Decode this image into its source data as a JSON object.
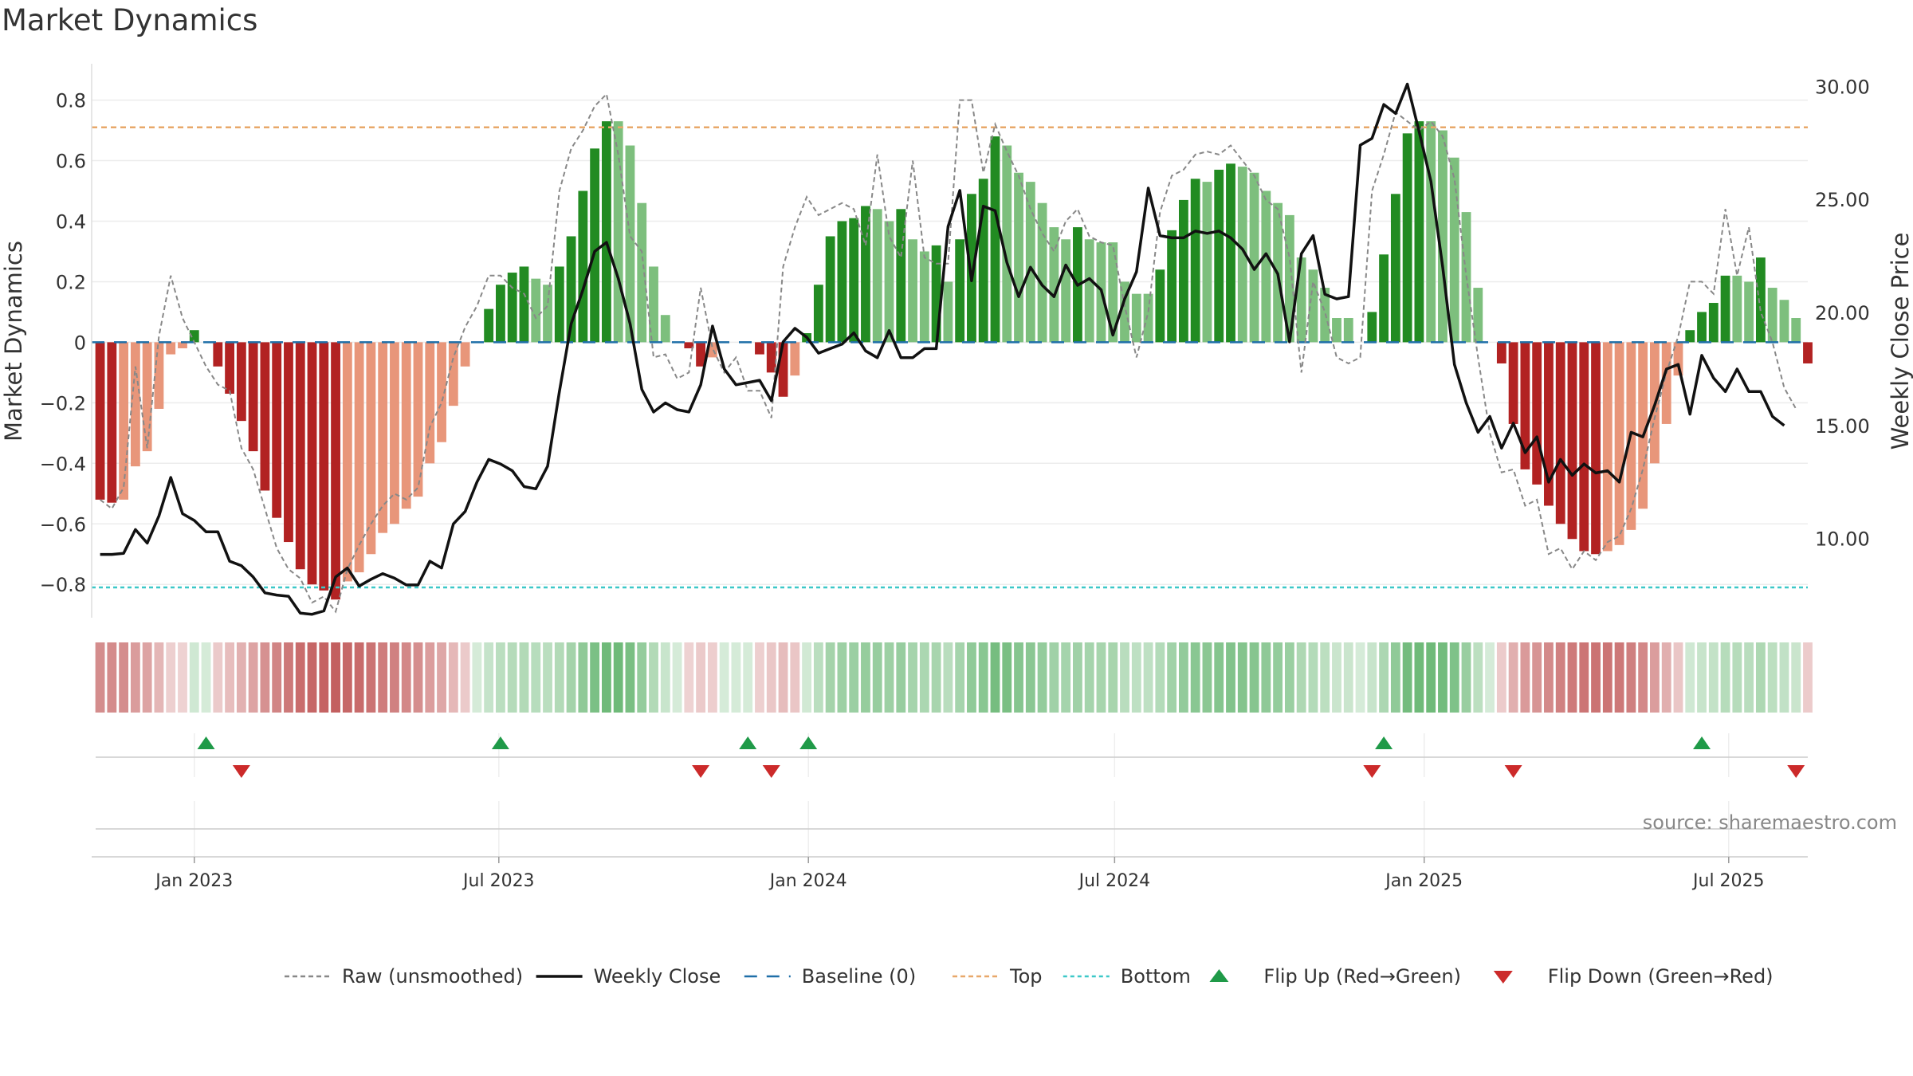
{
  "title": "Market Dynamics",
  "source": "source: sharemaestro.com",
  "colors": {
    "strong_green": "#228b22",
    "light_green": "#7dbf7d",
    "strong_red": "#b22222",
    "light_red": "#e8967a",
    "price": "#111111",
    "raw": "#888888",
    "baseline": "#1f6fa8",
    "top": "#e8a86a",
    "bottom": "#3cc8c8",
    "flip_up": "#1f9a48",
    "flip_down": "#cc2a2a"
  },
  "chart_data": {
    "type": "bar",
    "title": "Market Dynamics",
    "ylabel": "Market Dynamics",
    "y2label": "Weekly Close Price",
    "ylim": [
      -0.91,
      0.92
    ],
    "y2lim": [
      6.5,
      31.0
    ],
    "yticks": [
      -0.8,
      -0.6,
      -0.4,
      -0.2,
      0,
      0.2,
      0.4,
      0.6,
      0.8
    ],
    "ytick_labels": [
      "−0.8",
      "−0.6",
      "−0.4",
      "−0.2",
      "0",
      "0.2",
      "0.4",
      "0.6",
      "0.8"
    ],
    "y2ticks": [
      10,
      15,
      20,
      25,
      30
    ],
    "y2tick_labels": [
      "10.00",
      "15.00",
      "20.00",
      "25.00",
      "30.00"
    ],
    "x_start": "2022-11-01",
    "x_end": "2025-08-17",
    "x_ticks": [
      {
        "date": "2023-01-01",
        "label": "Jan 2023"
      },
      {
        "date": "2023-07-01",
        "label": "Jul 2023"
      },
      {
        "date": "2024-01-01",
        "label": "Jan 2024"
      },
      {
        "date": "2024-07-01",
        "label": "Jul 2024"
      },
      {
        "date": "2025-01-01",
        "label": "Jan 2025"
      },
      {
        "date": "2025-07-01",
        "label": "Jul 2025"
      }
    ],
    "first_week": "2022-11-06",
    "week_days": 7,
    "top_level": 0.71,
    "bottom_level": -0.81,
    "baseline": 0,
    "grid": true,
    "legend_position": "bottom",
    "legend": [
      {
        "key": "raw",
        "label": "Raw (unsmoothed)"
      },
      {
        "key": "price",
        "label": "Weekly Close"
      },
      {
        "key": "baseline",
        "label": "Baseline (0)"
      },
      {
        "key": "top",
        "label": "Top"
      },
      {
        "key": "bottom",
        "label": "Bottom"
      },
      {
        "key": "flip_up",
        "label": "Flip Up (Red→Green)"
      },
      {
        "key": "flip_down",
        "label": "Flip Down (Green→Red)"
      }
    ],
    "dynamics": [
      -0.52,
      -0.53,
      -0.52,
      -0.41,
      -0.36,
      -0.22,
      -0.04,
      -0.02,
      0.04,
      0.0,
      -0.08,
      -0.17,
      -0.26,
      -0.36,
      -0.49,
      -0.58,
      -0.66,
      -0.75,
      -0.8,
      -0.82,
      -0.85,
      -0.79,
      -0.76,
      -0.7,
      -0.63,
      -0.6,
      -0.55,
      -0.51,
      -0.4,
      -0.33,
      -0.21,
      -0.08,
      0.0,
      0.11,
      0.19,
      0.23,
      0.25,
      0.21,
      0.19,
      0.25,
      0.35,
      0.5,
      0.64,
      0.73,
      0.73,
      0.65,
      0.46,
      0.25,
      0.09,
      0.0,
      -0.02,
      -0.08,
      -0.05,
      0.0,
      0.0,
      0.0,
      -0.04,
      -0.1,
      -0.18,
      -0.11,
      0.03,
      0.19,
      0.35,
      0.4,
      0.41,
      0.45,
      0.44,
      0.4,
      0.44,
      0.34,
      0.3,
      0.32,
      0.2,
      0.34,
      0.49,
      0.54,
      0.68,
      0.65,
      0.56,
      0.53,
      0.46,
      0.38,
      0.34,
      0.38,
      0.34,
      0.33,
      0.33,
      0.2,
      0.16,
      0.16,
      0.24,
      0.37,
      0.47,
      0.54,
      0.53,
      0.57,
      0.59,
      0.58,
      0.56,
      0.5,
      0.46,
      0.42,
      0.28,
      0.24,
      0.18,
      0.08,
      0.08,
      0.0,
      0.1,
      0.29,
      0.49,
      0.69,
      0.73,
      0.73,
      0.7,
      0.61,
      0.43,
      0.18,
      0.0,
      -0.07,
      -0.27,
      -0.42,
      -0.47,
      -0.54,
      -0.6,
      -0.65,
      -0.69,
      -0.7,
      -0.69,
      -0.67,
      -0.62,
      -0.55,
      -0.4,
      -0.27,
      -0.11,
      0.04,
      0.1,
      0.13,
      0.22,
      0.22,
      0.2,
      0.28,
      0.18,
      0.14,
      0.08,
      -0.07
    ],
    "raw": [
      -0.52,
      -0.55,
      -0.48,
      -0.08,
      -0.35,
      0.02,
      0.22,
      0.08,
      0.0,
      -0.08,
      -0.14,
      -0.16,
      -0.35,
      -0.42,
      -0.55,
      -0.68,
      -0.75,
      -0.78,
      -0.86,
      -0.84,
      -0.89,
      -0.75,
      -0.67,
      -0.6,
      -0.54,
      -0.5,
      -0.52,
      -0.48,
      -0.28,
      -0.2,
      -0.05,
      0.05,
      0.12,
      0.22,
      0.22,
      0.18,
      0.16,
      0.08,
      0.12,
      0.5,
      0.64,
      0.7,
      0.78,
      0.82,
      0.62,
      0.35,
      0.3,
      -0.05,
      -0.04,
      -0.12,
      -0.1,
      0.18,
      -0.02,
      -0.1,
      -0.05,
      -0.16,
      -0.16,
      -0.25,
      0.25,
      0.38,
      0.48,
      0.42,
      0.44,
      0.46,
      0.44,
      0.32,
      0.62,
      0.35,
      0.28,
      0.6,
      0.28,
      0.26,
      0.26,
      0.8,
      0.8,
      0.56,
      0.72,
      0.63,
      0.55,
      0.44,
      0.36,
      0.3,
      0.4,
      0.44,
      0.35,
      0.33,
      0.32,
      0.12,
      -0.05,
      0.1,
      0.43,
      0.55,
      0.57,
      0.62,
      0.63,
      0.62,
      0.65,
      0.6,
      0.55,
      0.47,
      0.44,
      0.28,
      -0.1,
      0.2,
      0.1,
      -0.05,
      -0.07,
      -0.05,
      0.5,
      0.62,
      0.76,
      0.73,
      0.7,
      0.73,
      0.68,
      0.54,
      0.22,
      -0.05,
      -0.3,
      -0.43,
      -0.42,
      -0.54,
      -0.52,
      -0.7,
      -0.68,
      -0.75,
      -0.69,
      -0.72,
      -0.66,
      -0.64,
      -0.55,
      -0.42,
      -0.25,
      -0.1,
      0.02,
      0.2,
      0.2,
      0.16,
      0.44,
      0.22,
      0.38,
      0.1,
      0.0,
      -0.15,
      -0.22
    ],
    "price": [
      9.3,
      9.3,
      9.35,
      10.4,
      9.8,
      11.0,
      12.7,
      11.1,
      10.8,
      10.3,
      10.3,
      9.0,
      8.8,
      8.3,
      7.6,
      7.5,
      7.45,
      6.7,
      6.65,
      6.8,
      8.3,
      8.7,
      7.9,
      8.2,
      8.45,
      8.25,
      7.95,
      7.95,
      9.0,
      8.7,
      10.65,
      11.2,
      12.5,
      13.5,
      13.3,
      13.0,
      12.3,
      12.2,
      13.2,
      16.5,
      19.5,
      21.0,
      22.7,
      23.1,
      21.5,
      19.5,
      16.6,
      15.6,
      16.0,
      15.7,
      15.6,
      16.8,
      19.4,
      17.5,
      16.8,
      16.9,
      17.0,
      16.1,
      18.7,
      19.3,
      18.9,
      18.2,
      18.4,
      18.6,
      19.1,
      18.3,
      18.0,
      19.2,
      18.0,
      18.0,
      18.4,
      18.4,
      23.8,
      25.4,
      21.4,
      24.7,
      24.5,
      22.2,
      20.7,
      22.0,
      21.2,
      20.7,
      22.1,
      21.2,
      21.5,
      21.0,
      19.0,
      20.6,
      21.8,
      25.5,
      23.4,
      23.3,
      23.3,
      23.6,
      23.5,
      23.6,
      23.3,
      22.8,
      21.9,
      22.6,
      21.7,
      18.7,
      22.6,
      23.4,
      20.8,
      20.6,
      20.7,
      27.4,
      27.7,
      29.2,
      28.8,
      30.1,
      28.0,
      25.8,
      22.0,
      17.7,
      16.0,
      14.7,
      15.4,
      14.0,
      15.1,
      13.8,
      14.5,
      12.5,
      13.5,
      12.8,
      13.3,
      12.9,
      13.0,
      12.5,
      14.7,
      14.5,
      15.9,
      17.5,
      17.7,
      15.5,
      18.1,
      17.1,
      16.5,
      17.5,
      16.5,
      16.5,
      15.4,
      15.0
    ],
    "flip_up_dates": [
      "2023-01-08",
      "2023-07-02",
      "2023-11-26",
      "2024-01-01",
      "2024-12-08",
      "2025-06-15"
    ],
    "flip_down_dates": [
      "2023-01-29",
      "2023-10-29",
      "2023-12-10",
      "2024-12-01",
      "2025-02-23",
      "2025-08-10"
    ]
  }
}
